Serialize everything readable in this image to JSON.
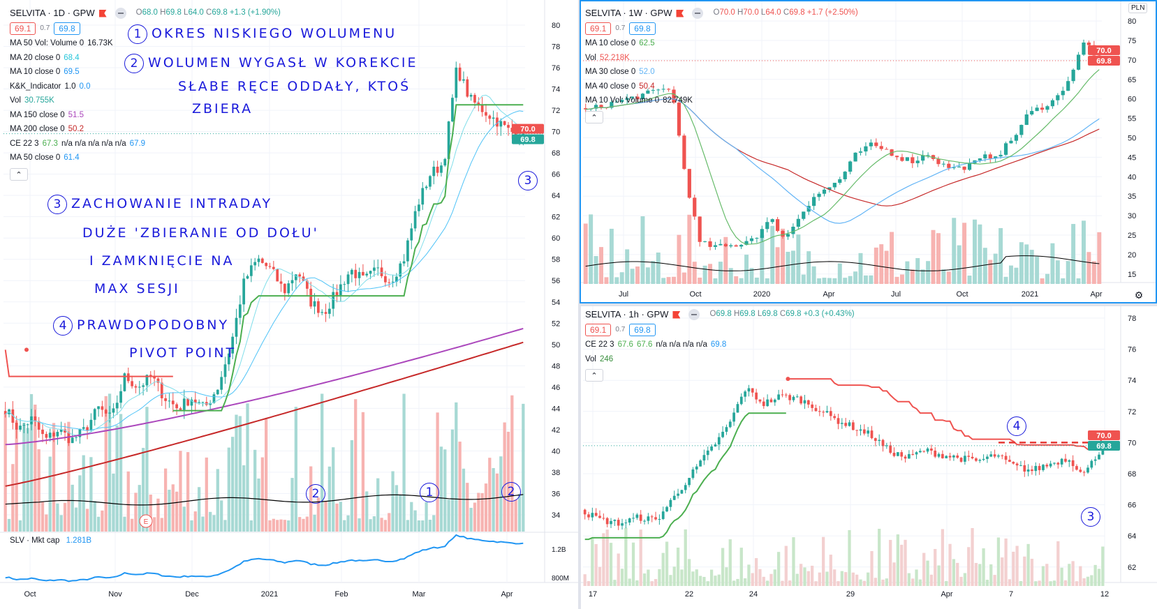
{
  "colors": {
    "up": "#26a69a",
    "down": "#ef5350",
    "up_vol": "#a7d9d4",
    "down_vol": "#f7b3b1",
    "accent": "#2196f3",
    "grid": "#f0f3fa"
  },
  "panels": {
    "daily": {
      "title": "SELVITA · 1D · GPW",
      "ohlc": {
        "o": "68.0",
        "h": "69.8",
        "l": "64.0",
        "c": "69.8",
        "chg": "+1.3 (+1.90%)",
        "color": "#26a69a"
      },
      "bid": "69.1",
      "spread": "0.7",
      "ask": "69.8",
      "legend": [
        {
          "label": "MA 50 Vol: Volume 0",
          "values": [
            {
              "v": "16.73K",
              "color": "#131722"
            }
          ]
        },
        {
          "label": "MA 20 close 0",
          "values": [
            {
              "v": "68.4",
              "color": "#26c6da"
            }
          ]
        },
        {
          "label": "MA 10 close 0",
          "values": [
            {
              "v": "69.5",
              "color": "#2196f3"
            }
          ]
        },
        {
          "label": "K&K_Indicator",
          "values": [
            {
              "v": "1.0",
              "color": "#131722"
            },
            {
              "v": "0.0",
              "color": "#2196f3"
            }
          ]
        },
        {
          "label": "Vol",
          "values": [
            {
              "v": "30.755K",
              "color": "#26a69a"
            }
          ]
        },
        {
          "label": "MA 150 close 0",
          "values": [
            {
              "v": "51.5",
              "color": "#ab47bc"
            }
          ]
        },
        {
          "label": "MA 200 close 0",
          "values": [
            {
              "v": "50.2",
              "color": "#c62828"
            }
          ]
        },
        {
          "label": "CE 22 3",
          "values": [
            {
              "v": "67.3",
              "color": "#4caf50"
            },
            {
              "v": "n/a n/a n/a n/a n/a",
              "color": "#131722"
            },
            {
              "v": "67.9",
              "color": "#2196f3"
            }
          ]
        },
        {
          "label": "MA 50 close 0",
          "values": [
            {
              "v": "61.4",
              "color": "#2196f3"
            }
          ]
        }
      ],
      "collapse_icon": "chevron-up-icon",
      "price_axis": [
        "80",
        "78",
        "76",
        "74",
        "72",
        "70",
        "68",
        "66",
        "64",
        "62",
        "60",
        "58",
        "56",
        "54",
        "52",
        "50",
        "48",
        "46",
        "44",
        "42",
        "40",
        "38",
        "36",
        "34"
      ],
      "last_labels": [
        {
          "v": "70.0",
          "color": "#ef5350"
        },
        {
          "v": "69.8",
          "color": "#26a69a"
        }
      ],
      "time_axis": [
        "Oct",
        "Nov",
        "Dec",
        "2021",
        "Feb",
        "Mar",
        "Apr"
      ],
      "earnings_marker": "E",
      "mktcap": {
        "label": "SLV · Mkt cap",
        "value": "1.281B",
        "axis": [
          "1.2B",
          "800M"
        ]
      }
    },
    "weekly": {
      "title": "SELVITA · 1W · GPW",
      "ohlc": {
        "o": "70.0",
        "h": "70.0",
        "l": "64.0",
        "c": "69.8",
        "chg": "+1.7 (+2.50%)",
        "color": "#ef5350"
      },
      "bid": "69.1",
      "spread": "0.7",
      "ask": "69.8",
      "legend": [
        {
          "label": "MA 10 close 0",
          "values": [
            {
              "v": "62.5",
              "color": "#4caf50"
            }
          ]
        },
        {
          "label": "Vol",
          "values": [
            {
              "v": "52.218K",
              "color": "#ef5350"
            }
          ]
        },
        {
          "label": "MA 30 close 0",
          "values": [
            {
              "v": "52.0",
              "color": "#64b5f6"
            }
          ]
        },
        {
          "label": "MA 40 close 0",
          "values": [
            {
              "v": "50.4",
              "color": "#c62828"
            }
          ]
        },
        {
          "label": "MA 10 Vol: Volume 0",
          "values": [
            {
              "v": "82.749K",
              "color": "#131722"
            }
          ]
        }
      ],
      "currency": "PLN",
      "price_axis": [
        "80",
        "75",
        "70",
        "65",
        "60",
        "55",
        "50",
        "45",
        "40",
        "35",
        "30",
        "25",
        "20",
        "15"
      ],
      "last_labels": [
        {
          "v": "70.0",
          "color": "#ef5350"
        },
        {
          "v": "69.8",
          "color": "#ef5350"
        }
      ],
      "time_axis": [
        "Jul",
        "Oct",
        "2020",
        "Apr",
        "Jul",
        "Oct",
        "2021",
        "Apr"
      ]
    },
    "hourly": {
      "title": "SELVITA · 1h · GPW",
      "ohlc": {
        "o": "69.8",
        "h": "69.8",
        "l": "69.8",
        "c": "69.8",
        "chg": "+0.3 (+0.43%)",
        "color": "#26a69a"
      },
      "bid": "69.1",
      "spread": "0.7",
      "ask": "69.8",
      "legend": [
        {
          "label": "CE 22 3",
          "values": [
            {
              "v": "67.6",
              "color": "#4caf50"
            },
            {
              "v": "67.6",
              "color": "#4caf50"
            },
            {
              "v": "n/a n/a n/a n/a",
              "color": "#131722"
            },
            {
              "v": "69.8",
              "color": "#2196f3"
            }
          ]
        },
        {
          "label": "Vol",
          "values": [
            {
              "v": "246",
              "color": "#388e3c"
            }
          ]
        }
      ],
      "price_axis": [
        "78",
        "76",
        "74",
        "72",
        "70",
        "68",
        "66",
        "64",
        "62"
      ],
      "last_labels": [
        {
          "v": "70.0",
          "color": "#ef5350"
        },
        {
          "v": "69.8",
          "color": "#26a69a"
        }
      ],
      "time_axis": [
        "17",
        "22",
        "24",
        "29",
        "Apr",
        "7",
        "12"
      ]
    }
  },
  "annotations": {
    "a1": {
      "num": "1",
      "text": "OKRES NISKIEGO WOLUMENU"
    },
    "a2": {
      "num": "2",
      "text": "WOLUMEN WYGASŁ W KOREKCIE"
    },
    "a2b": "SŁABE RĘCE ODDAŁY, KTOŚ",
    "a2c": "ZBIERA",
    "a3": {
      "num": "3",
      "text": "ZACHOWANIE INTRADAY"
    },
    "a3b": "DUŻE 'ZBIERANIE OD DOŁU'",
    "a3c": "I ZAMKNIĘCIE NA",
    "a3d": "MAX SESJI",
    "a4": {
      "num": "4",
      "text": "PRAWDOPODOBNY"
    },
    "a4b": "PIVOT POINT",
    "marks": {
      "m2a": "2",
      "m1": "1",
      "m2b": "2",
      "m3_daily": "3",
      "m4_hourly": "4",
      "m3_hourly": "3"
    }
  },
  "chart_data": [
    {
      "type": "candlestick",
      "panel": "daily",
      "period": "Sep 2020 - Apr 9 2021",
      "ylim": [
        33,
        81
      ],
      "close_path": [
        44,
        42,
        43,
        41,
        42,
        41,
        42,
        44,
        43,
        47,
        46,
        47,
        45,
        44,
        45,
        44,
        46,
        50,
        56,
        58,
        57,
        55,
        57,
        54,
        53,
        55,
        57,
        56,
        57,
        56,
        58,
        63,
        66,
        67,
        76,
        73,
        72,
        71,
        70,
        69.8
      ],
      "ma150_range": [
        40.6,
        51.5
      ],
      "ma200_range": [
        36.7,
        50.2
      ],
      "last": 69.8
    },
    {
      "type": "candlestick",
      "panel": "weekly",
      "period": "May 2019 - Apr 2021",
      "ylim": [
        12,
        80
      ],
      "close_path": [
        57,
        58,
        59,
        60,
        61,
        62,
        63,
        40,
        23,
        22,
        22,
        23,
        25,
        29,
        24,
        30,
        35,
        37,
        40,
        46,
        48,
        47,
        45,
        44,
        46,
        43,
        42,
        43,
        45,
        46,
        50,
        56,
        58,
        60,
        66,
        75,
        69.8
      ],
      "last": 69.8
    },
    {
      "type": "candlestick",
      "panel": "hourly",
      "period": "Mar 17 - Apr 12 2021",
      "ylim": [
        61.5,
        78.5
      ],
      "close_path": [
        65.5,
        65,
        64.8,
        65.2,
        65,
        66.5,
        68,
        69.5,
        71,
        73.5,
        72.5,
        73,
        72.8,
        72.2,
        71.5,
        71,
        70.5,
        69.5,
        69,
        69.5,
        69.2,
        69,
        68.8,
        69.2,
        68.5,
        68.2,
        68.6,
        69,
        68,
        69.8
      ],
      "last": 69.8
    }
  ]
}
